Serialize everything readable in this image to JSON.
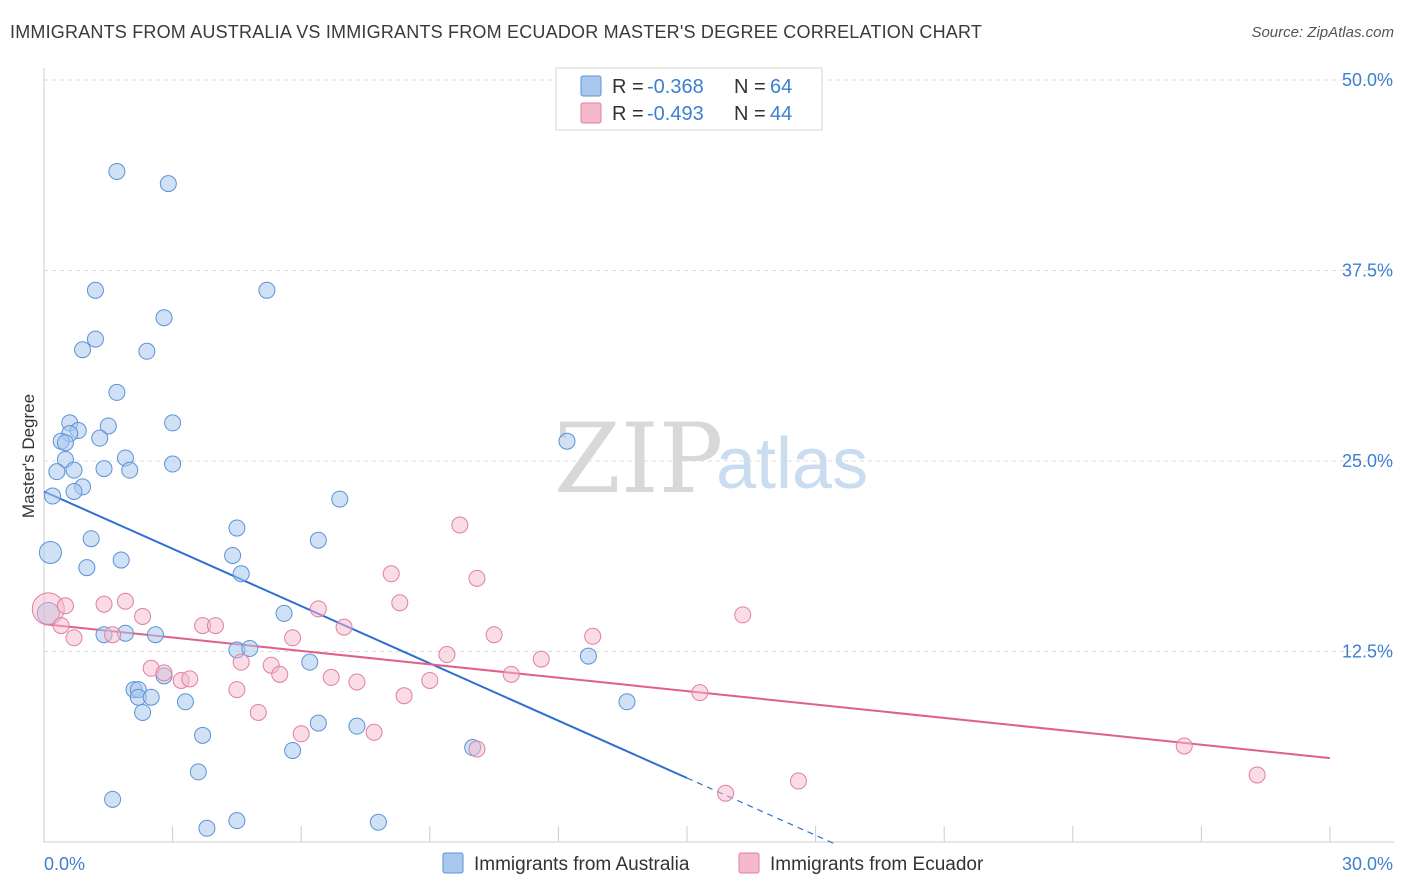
{
  "title": "IMMIGRANTS FROM AUSTRALIA VS IMMIGRANTS FROM ECUADOR MASTER'S DEGREE CORRELATION CHART",
  "source": "Source: ZipAtlas.com",
  "watermark": {
    "zip": "ZIP",
    "atlas": "atlas"
  },
  "colors": {
    "australia": "#a9c8ee",
    "australia_stroke": "#5b93d6",
    "australia_line": "#2e6fd0",
    "ecuador": "#f4b9cc",
    "ecuador_stroke": "#e27fa0",
    "ecuador_line": "#e0608a",
    "tick_text": "#3d7fd1",
    "grid": "#dddddd"
  },
  "legend": {
    "rows": [
      {
        "r_label": "R = ",
        "r_value": "-0.368",
        "n_label": "N = ",
        "n_value": "64"
      },
      {
        "r_label": "R = ",
        "r_value": "-0.493",
        "n_label": "N = ",
        "n_value": "44"
      }
    ]
  },
  "bottom_legend": [
    "Immigrants from Australia",
    "Immigrants from Ecuador"
  ],
  "chart_data": {
    "type": "scatter",
    "xlabel": "",
    "ylabel": "Master's Degree",
    "xlim": [
      0,
      30
    ],
    "ylim": [
      0,
      50
    ],
    "x_tick_labels": [
      "0.0%",
      "30.0%"
    ],
    "y_ticks": [
      12.5,
      25.0,
      37.5,
      50.0
    ],
    "y_tick_labels": [
      "12.5%",
      "25.0%",
      "37.5%",
      "50.0%"
    ],
    "grid": true,
    "series": [
      {
        "name": "Immigrants from Australia",
        "R": -0.368,
        "N": 64,
        "trend": {
          "x0": 0.0,
          "y0": 23.0,
          "x1": 15.0,
          "y1": 4.2,
          "dashed_to_x": 18.5
        },
        "points": [
          [
            1.7,
            44.0
          ],
          [
            2.9,
            43.2
          ],
          [
            1.2,
            36.2
          ],
          [
            5.2,
            36.2
          ],
          [
            2.8,
            34.4
          ],
          [
            1.2,
            33.0
          ],
          [
            0.9,
            32.3
          ],
          [
            2.4,
            32.2
          ],
          [
            1.7,
            29.5
          ],
          [
            3.0,
            27.5
          ],
          [
            0.6,
            27.5
          ],
          [
            1.5,
            27.3
          ],
          [
            0.8,
            27.0
          ],
          [
            0.6,
            26.8
          ],
          [
            1.3,
            26.5
          ],
          [
            0.4,
            26.3
          ],
          [
            0.5,
            26.2
          ],
          [
            12.2,
            26.3
          ],
          [
            0.5,
            25.1
          ],
          [
            1.9,
            25.2
          ],
          [
            0.7,
            24.4
          ],
          [
            1.4,
            24.5
          ],
          [
            2.0,
            24.4
          ],
          [
            3.0,
            24.8
          ],
          [
            0.3,
            24.3
          ],
          [
            0.9,
            23.3
          ],
          [
            0.7,
            23.0
          ],
          [
            0.2,
            22.7
          ],
          [
            6.9,
            22.5
          ],
          [
            4.5,
            20.6
          ],
          [
            1.1,
            19.9
          ],
          [
            6.4,
            19.8
          ],
          [
            0.15,
            19.0
          ],
          [
            4.4,
            18.8
          ],
          [
            1.8,
            18.5
          ],
          [
            1.0,
            18.0
          ],
          [
            4.6,
            17.6
          ],
          [
            0.1,
            15.0
          ],
          [
            5.6,
            15.0
          ],
          [
            1.4,
            13.6
          ],
          [
            1.9,
            13.7
          ],
          [
            2.6,
            13.6
          ],
          [
            4.5,
            12.6
          ],
          [
            4.8,
            12.7
          ],
          [
            12.7,
            12.2
          ],
          [
            6.2,
            11.8
          ],
          [
            2.8,
            10.9
          ],
          [
            2.1,
            10.0
          ],
          [
            2.2,
            10.0
          ],
          [
            2.2,
            9.5
          ],
          [
            2.5,
            9.5
          ],
          [
            3.3,
            9.2
          ],
          [
            13.6,
            9.2
          ],
          [
            2.3,
            8.5
          ],
          [
            6.4,
            7.8
          ],
          [
            7.3,
            7.6
          ],
          [
            3.7,
            7.0
          ],
          [
            10.0,
            6.2
          ],
          [
            5.8,
            6.0
          ],
          [
            3.6,
            4.6
          ],
          [
            1.6,
            2.8
          ],
          [
            3.8,
            0.9
          ],
          [
            4.5,
            1.4
          ],
          [
            7.8,
            1.3
          ]
        ]
      },
      {
        "name": "Immigrants from Ecuador",
        "R": -0.493,
        "N": 44,
        "trend": {
          "x0": 0.0,
          "y0": 14.3,
          "x1": 30.0,
          "y1": 5.5
        },
        "points": [
          [
            0.1,
            15.3
          ],
          [
            0.5,
            15.5
          ],
          [
            0.4,
            14.2
          ],
          [
            0.7,
            13.4
          ],
          [
            1.4,
            15.6
          ],
          [
            1.9,
            15.8
          ],
          [
            1.6,
            13.6
          ],
          [
            2.3,
            14.8
          ],
          [
            3.7,
            14.2
          ],
          [
            4.0,
            14.2
          ],
          [
            6.4,
            15.3
          ],
          [
            7.0,
            14.1
          ],
          [
            8.1,
            17.6
          ],
          [
            8.3,
            15.7
          ],
          [
            9.7,
            20.8
          ],
          [
            10.1,
            17.3
          ],
          [
            10.5,
            13.6
          ],
          [
            12.8,
            13.5
          ],
          [
            16.3,
            14.9
          ],
          [
            5.8,
            13.4
          ],
          [
            2.5,
            11.4
          ],
          [
            2.8,
            11.1
          ],
          [
            3.2,
            10.6
          ],
          [
            3.4,
            10.7
          ],
          [
            4.5,
            10.0
          ],
          [
            4.6,
            11.8
          ],
          [
            5.3,
            11.6
          ],
          [
            5.5,
            11.0
          ],
          [
            6.7,
            10.8
          ],
          [
            7.3,
            10.5
          ],
          [
            9.4,
            12.3
          ],
          [
            10.9,
            11.0
          ],
          [
            11.6,
            12.0
          ],
          [
            9.0,
            10.6
          ],
          [
            8.4,
            9.6
          ],
          [
            5.0,
            8.5
          ],
          [
            6.0,
            7.1
          ],
          [
            7.7,
            7.2
          ],
          [
            10.1,
            6.1
          ],
          [
            15.3,
            9.8
          ],
          [
            15.9,
            3.2
          ],
          [
            17.6,
            4.0
          ],
          [
            26.6,
            6.3
          ],
          [
            28.3,
            4.4
          ]
        ]
      }
    ]
  }
}
